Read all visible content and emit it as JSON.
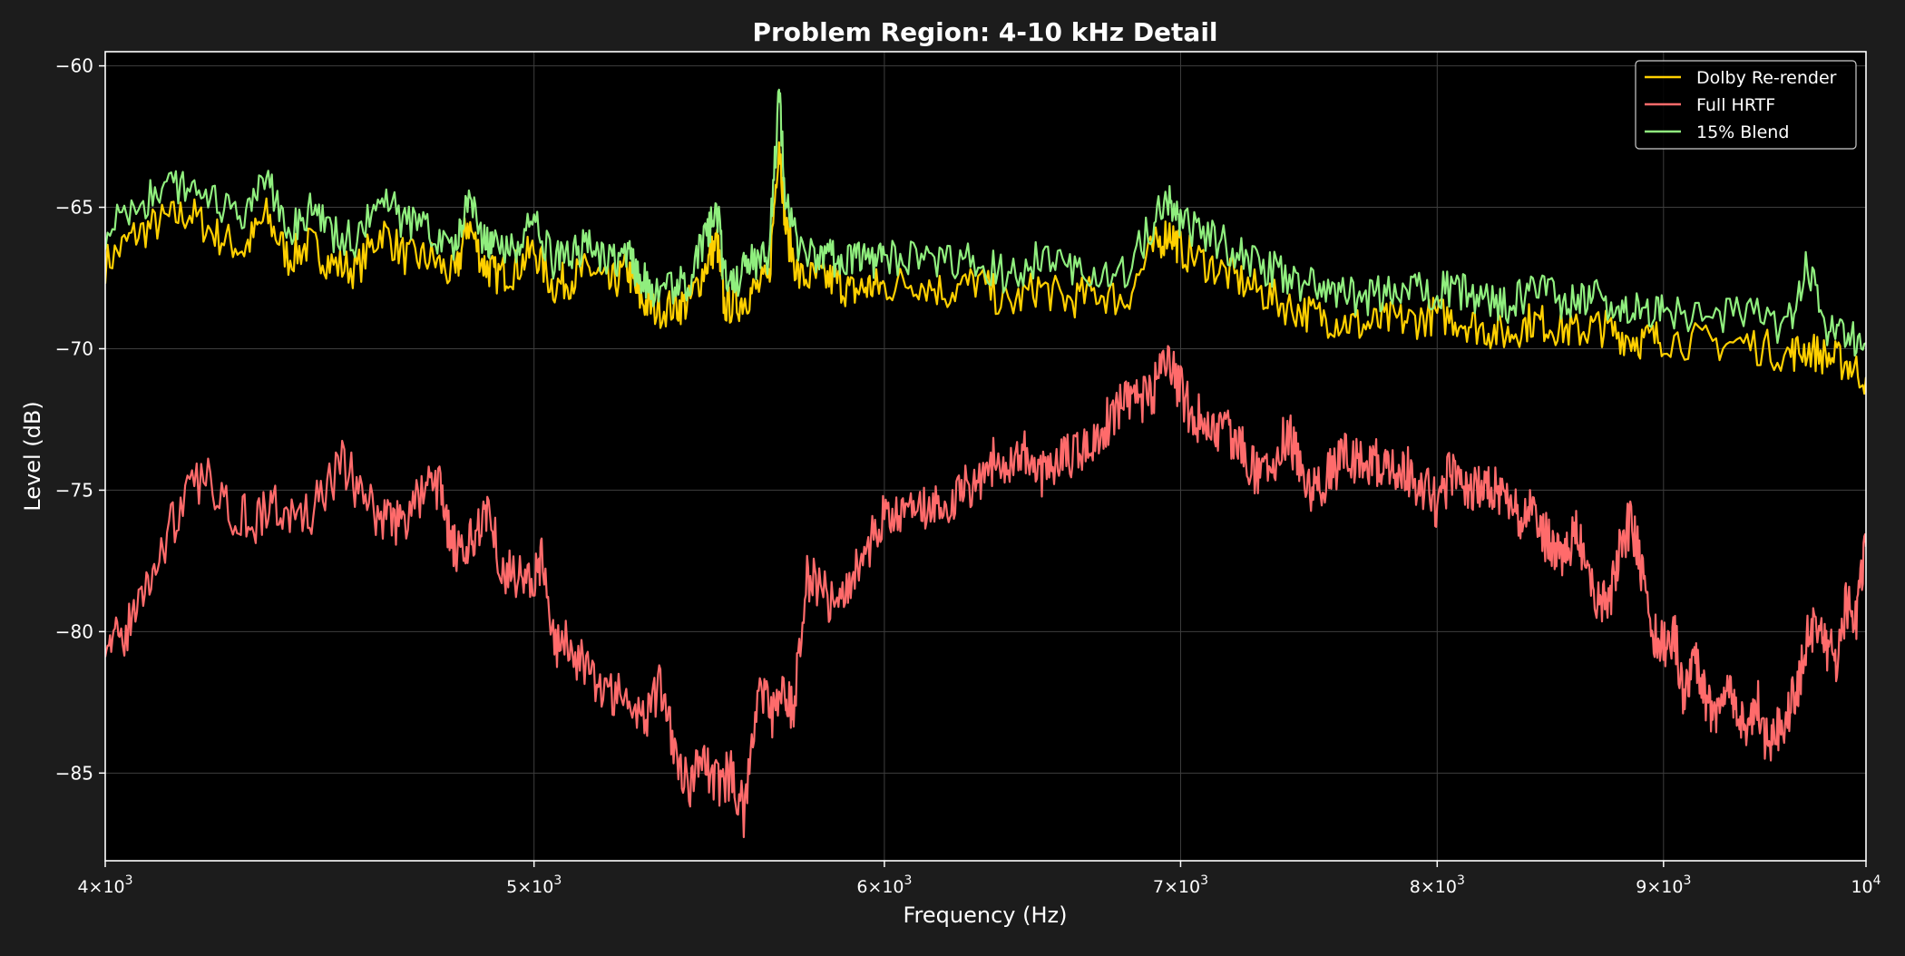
{
  "chart_data": {
    "type": "line",
    "title": "Problem Region: 4-10 kHz Detail",
    "xlabel": "Frequency (Hz)",
    "ylabel": "Level (dB)",
    "xscale": "log",
    "xlim": [
      4000,
      10000
    ],
    "ylim": [
      -88.1,
      -59.5
    ],
    "x_ticks": [
      {
        "value": 4000,
        "base": "4",
        "exp": "3"
      },
      {
        "value": 5000,
        "base": "5",
        "exp": "3"
      },
      {
        "value": 6000,
        "base": "6",
        "exp": "3"
      },
      {
        "value": 7000,
        "base": "7",
        "exp": "3"
      },
      {
        "value": 8000,
        "base": "8",
        "exp": "3"
      },
      {
        "value": 9000,
        "base": "9",
        "exp": "3"
      },
      {
        "value": 10000,
        "base": "",
        "exp": "4"
      }
    ],
    "y_ticks": [
      {
        "value": -60,
        "label": "−60"
      },
      {
        "value": -65,
        "label": "−65"
      },
      {
        "value": -70,
        "label": "−70"
      },
      {
        "value": -75,
        "label": "−75"
      },
      {
        "value": -80,
        "label": "−80"
      },
      {
        "value": -85,
        "label": "−85"
      }
    ],
    "grid": true,
    "legend_position": "top-right",
    "colors": {
      "page_background": "#1c1c1c",
      "plot_background": "#000000",
      "axes": "#ffffff",
      "grid": "#3e3e3e",
      "text": "#ffffff"
    },
    "series": [
      {
        "name": "Dolby Re-render",
        "color": "#ffd000",
        "x": [
          4000,
          4060,
          4120,
          4180,
          4240,
          4300,
          4350,
          4400,
          4450,
          4500,
          4560,
          4620,
          4680,
          4740,
          4800,
          4830,
          4870,
          4900,
          4950,
          5000,
          5050,
          5100,
          5150,
          5200,
          5250,
          5280,
          5320,
          5380,
          5420,
          5470,
          5500,
          5520,
          5560,
          5600,
          5650,
          5680,
          5700,
          5740,
          5800,
          5850,
          5900,
          5950,
          6000,
          6100,
          6200,
          6300,
          6400,
          6500,
          6600,
          6700,
          6800,
          6900,
          6960,
          7000,
          7100,
          7200,
          7300,
          7400,
          7500,
          7600,
          7700,
          7800,
          7900,
          8000,
          8100,
          8200,
          8300,
          8400,
          8500,
          8600,
          8700,
          8800,
          8900,
          9000,
          9200,
          9400,
          9600,
          9700,
          9800,
          9900,
          10000
        ],
        "y": [
          -67.0,
          -66.0,
          -65.5,
          -65.2,
          -66.0,
          -66.5,
          -65.3,
          -66.8,
          -66.3,
          -67.0,
          -67.2,
          -65.8,
          -66.8,
          -66.8,
          -67.5,
          -65.5,
          -67.0,
          -67.4,
          -67.2,
          -66.5,
          -67.8,
          -67.5,
          -67.2,
          -67.8,
          -67.2,
          -68.2,
          -68.6,
          -68.5,
          -68.4,
          -67.0,
          -66.2,
          -68.5,
          -68.4,
          -68.0,
          -67.6,
          -62.5,
          -65.8,
          -67.5,
          -67.5,
          -67.6,
          -68.0,
          -67.8,
          -67.8,
          -67.6,
          -68.0,
          -67.6,
          -68.5,
          -67.8,
          -68.3,
          -68.0,
          -68.3,
          -66.5,
          -65.8,
          -66.5,
          -67.0,
          -67.5,
          -68.0,
          -68.5,
          -68.8,
          -69.0,
          -69.2,
          -69.0,
          -69.0,
          -68.8,
          -69.0,
          -69.3,
          -69.5,
          -69.0,
          -69.2,
          -69.4,
          -69.2,
          -69.5,
          -69.7,
          -69.6,
          -69.8,
          -69.8,
          -70.2,
          -70.0,
          -70.3,
          -70.5,
          -71.0
        ]
      },
      {
        "name": "Full HRTF",
        "color": "#ff6b6b",
        "x": [
          4000,
          4030,
          4070,
          4110,
          4160,
          4220,
          4280,
          4330,
          4370,
          4420,
          4470,
          4530,
          4580,
          4630,
          4670,
          4720,
          4760,
          4790,
          4820,
          4850,
          4880,
          4920,
          4960,
          5000,
          5020,
          5060,
          5100,
          5150,
          5200,
          5250,
          5300,
          5340,
          5380,
          5420,
          5460,
          5500,
          5540,
          5580,
          5620,
          5660,
          5700,
          5720,
          5760,
          5800,
          5850,
          5900,
          5950,
          6000,
          6050,
          6100,
          6150,
          6200,
          6250,
          6300,
          6350,
          6400,
          6450,
          6500,
          6550,
          6600,
          6650,
          6700,
          6750,
          6800,
          6850,
          6900,
          6950,
          7000,
          7050,
          7100,
          7150,
          7200,
          7250,
          7300,
          7350,
          7400,
          7450,
          7500,
          7550,
          7600,
          7650,
          7700,
          7750,
          7800,
          7850,
          7900,
          7950,
          8000,
          8050,
          8100,
          8150,
          8200,
          8250,
          8300,
          8350,
          8400,
          8450,
          8500,
          8550,
          8600,
          8650,
          8700,
          8750,
          8800,
          8850,
          8900,
          8950,
          9000,
          9050,
          9100,
          9150,
          9200,
          9250,
          9300,
          9350,
          9400,
          9450,
          9500,
          9550,
          9600,
          9650,
          9700,
          9750,
          9800,
          9850,
          9900,
          9950,
          10000
        ],
        "y": [
          -80.0,
          -80.5,
          -79.0,
          -77.5,
          -75.5,
          -74.5,
          -75.8,
          -76.0,
          -75.5,
          -76.2,
          -75.5,
          -74.0,
          -75.5,
          -76.0,
          -76.2,
          -75.0,
          -74.8,
          -77.0,
          -77.5,
          -76.5,
          -75.5,
          -77.8,
          -78.0,
          -78.2,
          -77.5,
          -80.5,
          -80.5,
          -81.8,
          -82.0,
          -82.5,
          -83.0,
          -81.8,
          -84.0,
          -85.5,
          -84.5,
          -85.5,
          -85.0,
          -86.5,
          -82.0,
          -83.0,
          -82.0,
          -83.0,
          -78.0,
          -78.5,
          -79.0,
          -78.0,
          -77.0,
          -76.0,
          -75.8,
          -76.0,
          -75.5,
          -75.5,
          -75.0,
          -74.5,
          -74.0,
          -74.0,
          -73.5,
          -74.5,
          -74.0,
          -73.8,
          -73.5,
          -73.0,
          -72.5,
          -72.0,
          -72.0,
          -71.5,
          -70.5,
          -71.5,
          -72.5,
          -72.5,
          -73.0,
          -73.0,
          -74.0,
          -74.5,
          -74.0,
          -73.0,
          -74.0,
          -75.0,
          -74.5,
          -74.0,
          -73.8,
          -74.0,
          -74.0,
          -74.5,
          -74.0,
          -74.5,
          -75.0,
          -75.5,
          -74.5,
          -74.5,
          -75.0,
          -75.0,
          -75.0,
          -75.5,
          -76.0,
          -75.5,
          -76.5,
          -77.0,
          -77.5,
          -76.5,
          -77.5,
          -79.0,
          -79.0,
          -77.0,
          -76.0,
          -78.0,
          -80.0,
          -80.5,
          -80.0,
          -82.5,
          -81.0,
          -82.5,
          -83.0,
          -82.0,
          -83.0,
          -83.5,
          -82.5,
          -84.0,
          -83.5,
          -83.0,
          -82.0,
          -80.0,
          -80.0,
          -80.5,
          -81.0,
          -79.0,
          -79.5,
          -77.0
        ]
      },
      {
        "name": "15% Blend",
        "color": "#90ee7e",
        "x": [
          4000,
          4060,
          4120,
          4180,
          4240,
          4300,
          4350,
          4400,
          4450,
          4500,
          4560,
          4620,
          4680,
          4740,
          4800,
          4830,
          4870,
          4900,
          4950,
          5000,
          5050,
          5100,
          5150,
          5200,
          5250,
          5280,
          5320,
          5380,
          5420,
          5470,
          5500,
          5520,
          5560,
          5600,
          5650,
          5680,
          5700,
          5740,
          5800,
          5850,
          5900,
          5950,
          6000,
          6100,
          6200,
          6300,
          6400,
          6500,
          6600,
          6700,
          6800,
          6900,
          6960,
          7000,
          7100,
          7200,
          7300,
          7400,
          7500,
          7600,
          7700,
          7800,
          7900,
          8000,
          8100,
          8200,
          8300,
          8400,
          8500,
          8600,
          8700,
          8800,
          8900,
          9000,
          9200,
          9400,
          9600,
          9700,
          9800,
          9900,
          10000
        ],
        "y": [
          -65.8,
          -65.0,
          -64.5,
          -64.0,
          -65.0,
          -65.5,
          -64.0,
          -65.8,
          -65.0,
          -66.0,
          -66.2,
          -64.6,
          -65.6,
          -65.8,
          -66.5,
          -64.5,
          -66.2,
          -66.5,
          -66.4,
          -65.5,
          -67.0,
          -66.5,
          -66.5,
          -67.0,
          -66.5,
          -67.4,
          -67.8,
          -67.7,
          -67.6,
          -66.0,
          -65.0,
          -67.5,
          -67.5,
          -67.0,
          -66.7,
          -61.0,
          -64.8,
          -66.7,
          -66.6,
          -66.8,
          -67.0,
          -66.8,
          -66.9,
          -66.7,
          -67.0,
          -66.8,
          -67.5,
          -66.8,
          -67.3,
          -67.1,
          -67.4,
          -65.5,
          -64.8,
          -65.5,
          -66.0,
          -66.5,
          -67.0,
          -67.5,
          -67.8,
          -68.0,
          -68.2,
          -68.0,
          -68.0,
          -67.9,
          -68.0,
          -68.3,
          -68.5,
          -68.0,
          -68.2,
          -68.4,
          -68.2,
          -68.5,
          -68.7,
          -68.6,
          -68.8,
          -68.8,
          -69.2,
          -67.0,
          -69.3,
          -69.5,
          -69.8
        ]
      }
    ]
  }
}
